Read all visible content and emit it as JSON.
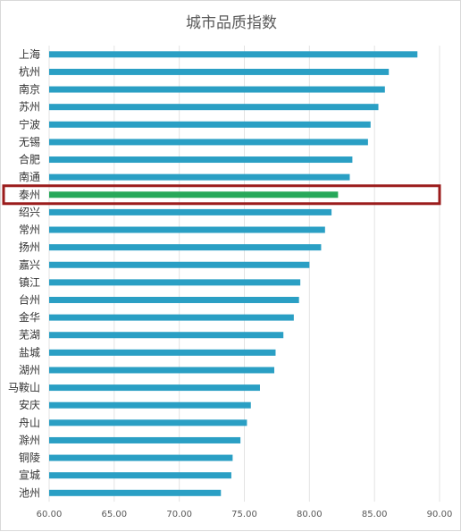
{
  "chart_data": {
    "type": "bar",
    "orientation": "horizontal",
    "title": "城市品质指数",
    "categories": [
      "上海",
      "杭州",
      "南京",
      "苏州",
      "宁波",
      "无锡",
      "合肥",
      "南通",
      "泰州",
      "绍兴",
      "常州",
      "扬州",
      "嘉兴",
      "镇江",
      "台州",
      "金华",
      "芜湖",
      "盐城",
      "湖州",
      "马鞍山",
      "安庆",
      "舟山",
      "滁州",
      "铜陵",
      "宣城",
      "池州"
    ],
    "values": [
      88.3,
      86.1,
      85.8,
      85.3,
      84.7,
      84.5,
      83.3,
      83.1,
      82.2,
      81.7,
      81.2,
      80.9,
      80.0,
      79.3,
      79.2,
      78.8,
      78.0,
      77.4,
      77.3,
      76.2,
      75.5,
      75.2,
      74.7,
      74.1,
      74.0,
      73.2
    ],
    "xlim": [
      60,
      90
    ],
    "xticks": [
      "60.00",
      "65.00",
      "70.00",
      "75.00",
      "80.00",
      "85.00",
      "90.00"
    ],
    "xlabel": "",
    "ylabel": "",
    "grid": "vertical",
    "bar_color": "#2a9fc4",
    "highlight": {
      "category": "泰州",
      "bar_color": "#27a85a",
      "box_color": "#9b1c1c"
    }
  }
}
